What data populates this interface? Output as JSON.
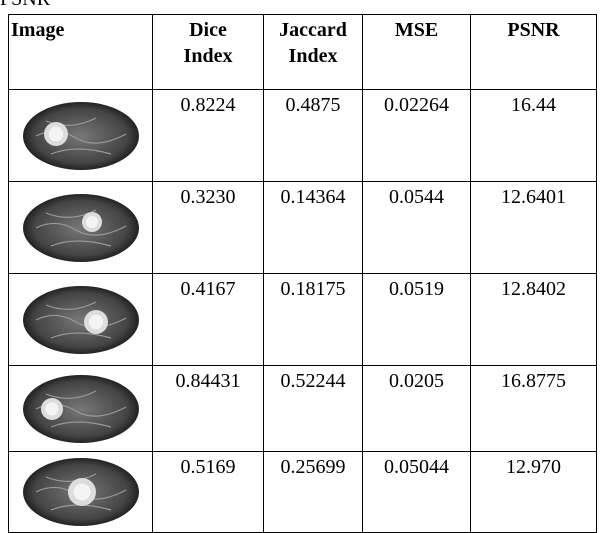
{
  "caption": "PSNR",
  "table": {
    "header": [
      [
        "Image"
      ],
      [
        "Dice",
        "Index"
      ],
      [
        "Jaccard",
        "Index"
      ],
      [
        "MSE"
      ],
      [
        "PSNR"
      ]
    ],
    "rows": [
      [
        "0.8224",
        "0.4875",
        "0.02264",
        "16.44"
      ],
      [
        "0.3230",
        "0.14364",
        "0.0544",
        "12.6401"
      ],
      [
        "0.4167",
        "0.18175",
        "0.0519",
        "12.8402"
      ],
      [
        "0.84431",
        "0.52244",
        "0.0205",
        "16.8775"
      ],
      [
        "0.5169",
        "0.25699",
        "0.05044",
        "12.970"
      ]
    ]
  }
}
